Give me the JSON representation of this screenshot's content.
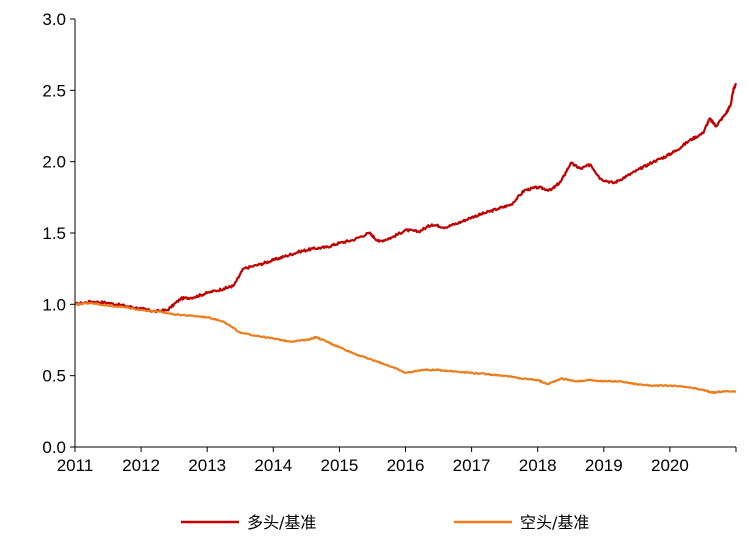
{
  "chart_data": {
    "type": "line",
    "title": "",
    "xlabel": "",
    "ylabel": "",
    "xlim": [
      2011.0,
      2021.0
    ],
    "ylim": [
      0.0,
      3.0
    ],
    "grid": false,
    "legend_position": "bottom",
    "x_ticks": [
      "2011",
      "2012",
      "2013",
      "2014",
      "2015",
      "2016",
      "2017",
      "2018",
      "2019",
      "2020"
    ],
    "y_ticks": [
      "0.0",
      "0.5",
      "1.0",
      "1.5",
      "2.0",
      "2.5",
      "3.0"
    ],
    "series": [
      {
        "name": "多头/基准",
        "color": "#c00000",
        "points": [
          [
            2011.0,
            1.0
          ],
          [
            2011.25,
            1.02
          ],
          [
            2011.5,
            1.01
          ],
          [
            2011.75,
            0.99
          ],
          [
            2012.0,
            0.97
          ],
          [
            2012.2,
            0.95
          ],
          [
            2012.4,
            0.96
          ],
          [
            2012.6,
            1.04
          ],
          [
            2012.8,
            1.05
          ],
          [
            2013.0,
            1.08
          ],
          [
            2013.25,
            1.11
          ],
          [
            2013.4,
            1.13
          ],
          [
            2013.55,
            1.25
          ],
          [
            2013.8,
            1.28
          ],
          [
            2014.0,
            1.31
          ],
          [
            2014.2,
            1.34
          ],
          [
            2014.4,
            1.37
          ],
          [
            2014.6,
            1.39
          ],
          [
            2014.8,
            1.4
          ],
          [
            2015.0,
            1.43
          ],
          [
            2015.2,
            1.45
          ],
          [
            2015.45,
            1.5
          ],
          [
            2015.6,
            1.44
          ],
          [
            2015.8,
            1.47
          ],
          [
            2016.0,
            1.52
          ],
          [
            2016.2,
            1.51
          ],
          [
            2016.4,
            1.56
          ],
          [
            2016.6,
            1.54
          ],
          [
            2016.8,
            1.57
          ],
          [
            2017.0,
            1.61
          ],
          [
            2017.2,
            1.64
          ],
          [
            2017.4,
            1.67
          ],
          [
            2017.6,
            1.7
          ],
          [
            2017.8,
            1.8
          ],
          [
            2018.0,
            1.82
          ],
          [
            2018.2,
            1.8
          ],
          [
            2018.35,
            1.86
          ],
          [
            2018.5,
            1.99
          ],
          [
            2018.65,
            1.95
          ],
          [
            2018.8,
            1.98
          ],
          [
            2018.95,
            1.88
          ],
          [
            2019.15,
            1.85
          ],
          [
            2019.35,
            1.9
          ],
          [
            2019.55,
            1.95
          ],
          [
            2019.75,
            2.0
          ],
          [
            2019.95,
            2.04
          ],
          [
            2020.1,
            2.08
          ],
          [
            2020.3,
            2.15
          ],
          [
            2020.5,
            2.2
          ],
          [
            2020.6,
            2.3
          ],
          [
            2020.7,
            2.25
          ],
          [
            2020.85,
            2.34
          ],
          [
            2020.92,
            2.4
          ],
          [
            2020.96,
            2.5
          ],
          [
            2021.0,
            2.55
          ]
        ]
      },
      {
        "name": "空头/基准",
        "color": "#ed7d1c",
        "points": [
          [
            2011.0,
            1.0
          ],
          [
            2011.25,
            1.01
          ],
          [
            2011.5,
            0.99
          ],
          [
            2011.75,
            0.98
          ],
          [
            2012.0,
            0.96
          ],
          [
            2012.25,
            0.95
          ],
          [
            2012.5,
            0.93
          ],
          [
            2012.75,
            0.92
          ],
          [
            2013.0,
            0.91
          ],
          [
            2013.25,
            0.88
          ],
          [
            2013.5,
            0.8
          ],
          [
            2013.75,
            0.78
          ],
          [
            2014.0,
            0.76
          ],
          [
            2014.25,
            0.74
          ],
          [
            2014.5,
            0.75
          ],
          [
            2014.65,
            0.77
          ],
          [
            2014.85,
            0.73
          ],
          [
            2015.0,
            0.7
          ],
          [
            2015.25,
            0.65
          ],
          [
            2015.5,
            0.61
          ],
          [
            2015.75,
            0.57
          ],
          [
            2016.0,
            0.52
          ],
          [
            2016.25,
            0.54
          ],
          [
            2016.5,
            0.54
          ],
          [
            2016.75,
            0.53
          ],
          [
            2017.0,
            0.52
          ],
          [
            2017.25,
            0.51
          ],
          [
            2017.5,
            0.5
          ],
          [
            2017.75,
            0.48
          ],
          [
            2018.0,
            0.47
          ],
          [
            2018.15,
            0.44
          ],
          [
            2018.35,
            0.48
          ],
          [
            2018.6,
            0.46
          ],
          [
            2018.8,
            0.47
          ],
          [
            2019.0,
            0.46
          ],
          [
            2019.25,
            0.46
          ],
          [
            2019.5,
            0.44
          ],
          [
            2019.75,
            0.43
          ],
          [
            2020.0,
            0.43
          ],
          [
            2020.25,
            0.42
          ],
          [
            2020.5,
            0.4
          ],
          [
            2020.65,
            0.38
          ],
          [
            2020.8,
            0.39
          ],
          [
            2021.0,
            0.39
          ]
        ]
      }
    ]
  }
}
